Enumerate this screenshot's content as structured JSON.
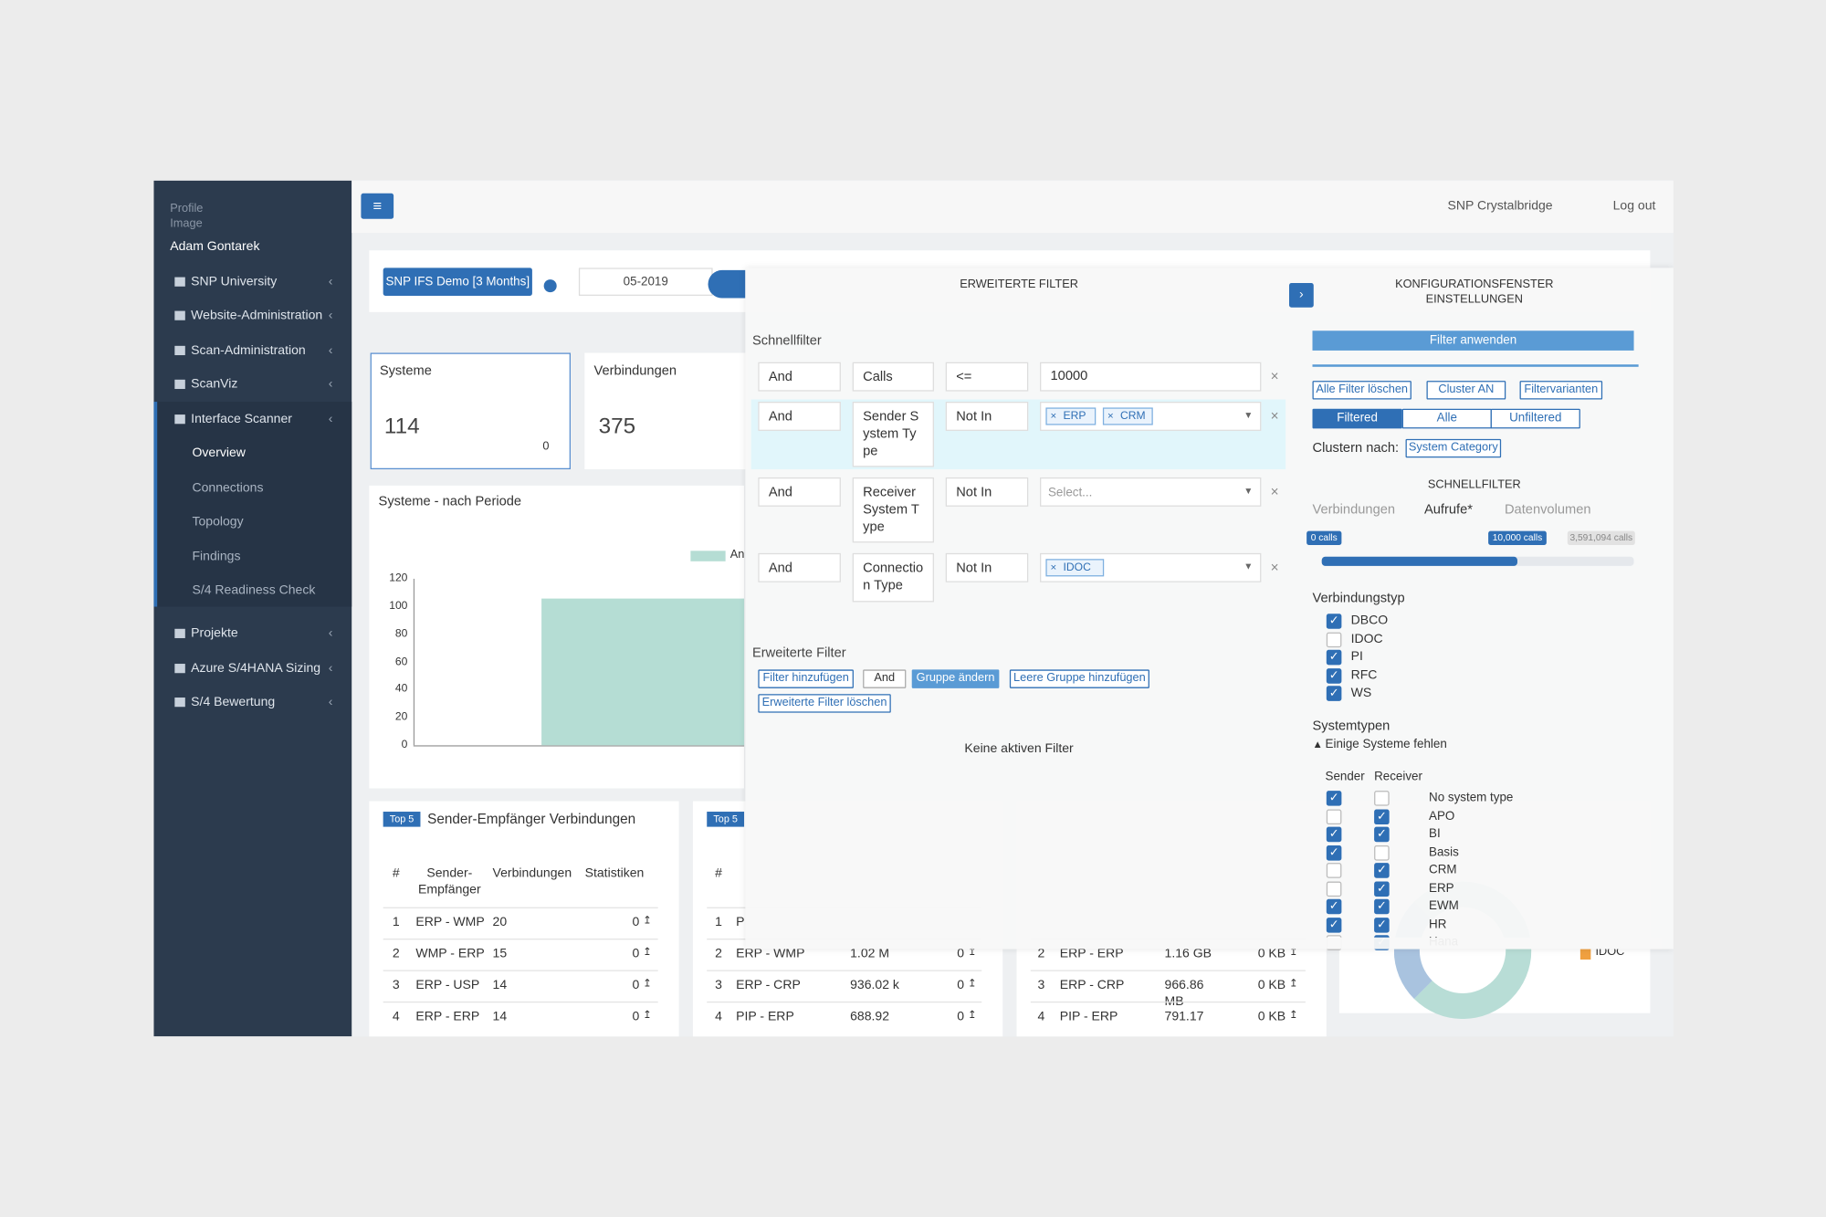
{
  "sidebar": {
    "profile_image": "Profile Image",
    "user": "Adam Gontarek",
    "menu": [
      {
        "label": "SNP University"
      },
      {
        "label": "Website-Administration"
      },
      {
        "label": "Scan-Administration"
      },
      {
        "label": "ScanViz"
      },
      {
        "label": "Interface Scanner",
        "submenu": [
          "Overview",
          "Connections",
          "Topology",
          "Findings",
          "S/4 Readiness Check"
        ]
      },
      {
        "label": "Projekte"
      },
      {
        "label": "Azure S/4HANA Sizing"
      },
      {
        "label": "S/4 Bewertung"
      }
    ]
  },
  "topbar": {
    "brand": "SNP Crystalbridge",
    "logout": "Log out"
  },
  "toolbar": {
    "scan": "SNP IFS Demo [3 Months]",
    "period": "05-2019"
  },
  "cards": [
    {
      "title": "Systeme",
      "value": "114",
      "change": "0"
    },
    {
      "title": "Verbindungen",
      "value": "375"
    }
  ],
  "period_chart": {
    "type": "bar",
    "title": "Systeme - nach Periode",
    "categories": [
      null
    ],
    "values": [
      106
    ],
    "color": "#b5ddd4",
    "legend": "An",
    "ylim": [
      0,
      120
    ],
    "yticks": [
      0,
      20,
      40,
      60,
      80,
      100,
      120
    ]
  },
  "tables": [
    {
      "badge": "Top 5",
      "title": "Sender-Empfänger Verbindungen",
      "headers": [
        "#",
        "Sender-Empfänger",
        "Verbindungen",
        "Statistiken"
      ],
      "rows": [
        [
          "1",
          "ERP - WMP",
          "20",
          "0"
        ],
        [
          "2",
          "WMP - ERP",
          "15",
          "0"
        ],
        [
          "3",
          "ERP - USP",
          "14",
          "0"
        ],
        [
          "4",
          "ERP - ERP",
          "14",
          "0"
        ]
      ]
    },
    {
      "badge": "Top 5",
      "headers": [
        "#"
      ],
      "rows": [
        [
          "1",
          "P"
        ],
        [
          "2",
          "ERP - WMP",
          "1.02 M",
          "0"
        ],
        [
          "3",
          "ERP - CRP",
          "936.02 k",
          "0"
        ],
        [
          "4",
          "PIP - ERP",
          "688.92",
          "0"
        ]
      ]
    },
    {
      "rows": [
        [
          "2",
          "ERP - ERP",
          "1.16 GB",
          "0 KB"
        ],
        [
          "3",
          "ERP - CRP",
          "966.86 MB",
          "0 KB"
        ],
        [
          "4",
          "PIP - ERP",
          "791.17",
          "0 KB"
        ]
      ]
    }
  ],
  "donut_legend": [
    "IDOC"
  ],
  "filter_modal": {
    "title": "ERWEITERTE FILTER",
    "quick_filter": "Schnellfilter",
    "rows": [
      {
        "logic": "And",
        "field": "Calls",
        "operator": "<=",
        "value": "10000"
      },
      {
        "logic": "And",
        "field": "Sender System Type",
        "operator": "Not In",
        "tags": [
          "ERP",
          "CRM"
        ]
      },
      {
        "logic": "And",
        "field": "Receiver System Type",
        "operator": "Not In",
        "placeholder": "Select..."
      },
      {
        "logic": "And",
        "field": "Connection Type",
        "operator": "Not In",
        "tags": [
          "IDOC"
        ]
      }
    ],
    "advanced": "Erweiterte Filter",
    "buttons": [
      "Filter hinzufügen",
      "And",
      "Gruppe ändern",
      "Leere Gruppe hinzufügen",
      "Erweiterte Filter löschen"
    ],
    "empty": "Keine aktiven Filter"
  },
  "config": {
    "title": "KONFIGURATIONSFENSTER EINSTELLUNGEN",
    "apply": "Filter anwenden",
    "actions": [
      "Alle Filter löschen",
      "Cluster AN",
      "Filtervarianten"
    ],
    "modes": [
      "Filtered",
      "Alle",
      "Unfiltered"
    ],
    "active_mode": 0,
    "cluster_label": "Clustern nach:",
    "cluster_value": "System Category",
    "quick_title": "SCHNELLFILTER",
    "metrics": [
      "Verbindungen",
      "Aufrufe*",
      "Datenvolumen"
    ],
    "active_metric": 1,
    "slider": {
      "min_label": "0 calls",
      "value_label": "10,000 calls",
      "max_label": "3,591,094 calls"
    },
    "connection_types_title": "Verbindungstyp",
    "connection_types": [
      {
        "name": "DBCO",
        "checked": true
      },
      {
        "name": "IDOC",
        "checked": false
      },
      {
        "name": "PI",
        "checked": true
      },
      {
        "name": "RFC",
        "checked": true
      },
      {
        "name": "WS",
        "checked": true
      }
    ],
    "system_types_title": "Systemtypen",
    "warning": "Einige Systeme fehlen",
    "columns": [
      "Sender",
      "Receiver"
    ],
    "system_types": [
      {
        "name": "No system type",
        "sender": true,
        "receiver": false
      },
      {
        "name": "APO",
        "sender": false,
        "receiver": true
      },
      {
        "name": "BI",
        "sender": true,
        "receiver": true
      },
      {
        "name": "Basis",
        "sender": true,
        "receiver": false
      },
      {
        "name": "CRM",
        "sender": false,
        "receiver": true
      },
      {
        "name": "ERP",
        "sender": false,
        "receiver": true
      },
      {
        "name": "EWM",
        "sender": true,
        "receiver": true
      },
      {
        "name": "HR",
        "sender": true,
        "receiver": true
      },
      {
        "name": "Hana",
        "sender": false,
        "receiver": true
      }
    ]
  }
}
